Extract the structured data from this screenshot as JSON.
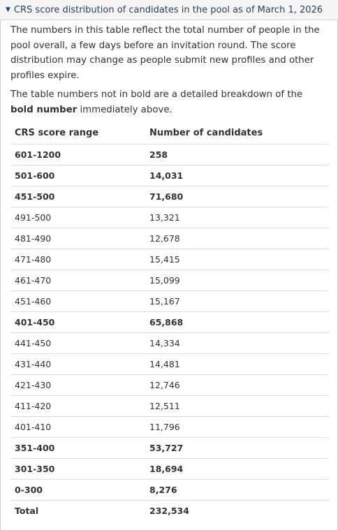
{
  "summary": {
    "label": "CRS score distribution of candidates in the pool as of March 1, 2026"
  },
  "intro": {
    "p1": "The numbers in this table reflect the total number of people in the pool overall, a few days before an invitation round. The score distribution may change as people submit new profiles and other profiles expire.",
    "p2_before": "The table numbers not in bold are a detailed breakdown of the ",
    "p2_bold": "bold number",
    "p2_after": " immediately above."
  },
  "table": {
    "headers": [
      "CRS score range",
      "Number of candidates"
    ],
    "rows": [
      {
        "range": "601-1200",
        "count": "258",
        "bold": true
      },
      {
        "range": "501-600",
        "count": "14,031",
        "bold": true
      },
      {
        "range": "451-500",
        "count": "71,680",
        "bold": true
      },
      {
        "range": "491-500",
        "count": "13,321",
        "bold": false
      },
      {
        "range": "481-490",
        "count": "12,678",
        "bold": false
      },
      {
        "range": "471-480",
        "count": "15,415",
        "bold": false
      },
      {
        "range": "461-470",
        "count": "15,099",
        "bold": false
      },
      {
        "range": "451-460",
        "count": "15,167",
        "bold": false
      },
      {
        "range": "401-450",
        "count": "65,868",
        "bold": true
      },
      {
        "range": "441-450",
        "count": "14,334",
        "bold": false
      },
      {
        "range": "431-440",
        "count": "14,481",
        "bold": false
      },
      {
        "range": "421-430",
        "count": "12,746",
        "bold": false
      },
      {
        "range": "411-420",
        "count": "12,511",
        "bold": false
      },
      {
        "range": "401-410",
        "count": "11,796",
        "bold": false
      },
      {
        "range": "351-400",
        "count": "53,727",
        "bold": true
      },
      {
        "range": "301-350",
        "count": "18,694",
        "bold": true
      },
      {
        "range": "0-300",
        "count": "8,276",
        "bold": true
      },
      {
        "range": "Total",
        "count": "232,534",
        "bold": true
      }
    ]
  }
}
